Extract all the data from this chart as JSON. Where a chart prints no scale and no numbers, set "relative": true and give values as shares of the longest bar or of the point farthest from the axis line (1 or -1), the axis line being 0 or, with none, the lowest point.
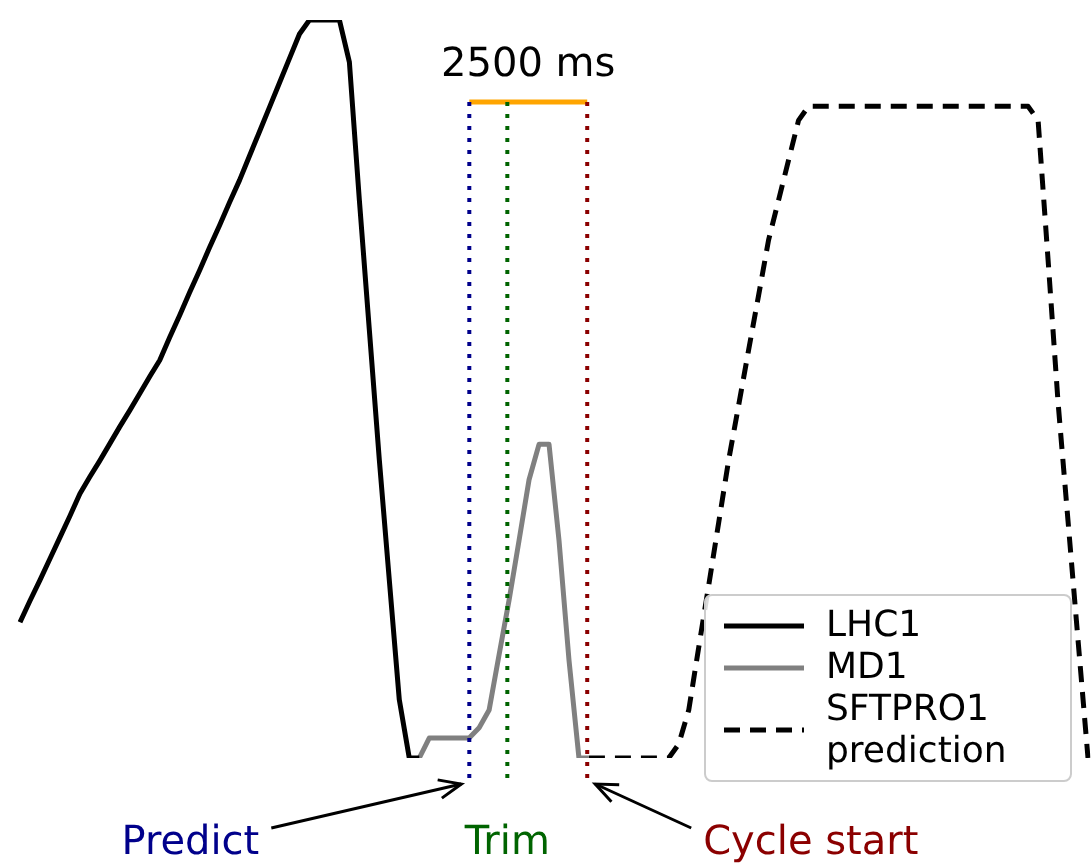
{
  "chart_data": {
    "type": "line",
    "relative": true,
    "legend": "bottom right",
    "marker": "none",
    "categories": [
      null,
      null,
      null,
      null,
      null,
      null,
      null,
      null,
      null,
      null,
      null,
      null,
      null,
      null,
      null,
      null,
      null,
      null,
      null,
      null,
      null,
      null,
      null,
      null,
      null,
      null,
      null,
      null,
      null,
      null,
      null,
      null,
      null,
      null,
      null,
      null,
      null,
      null,
      null,
      null,
      null,
      null,
      null,
      null,
      null,
      null,
      null,
      null,
      null,
      null,
      null,
      null,
      null,
      null,
      null,
      null,
      null,
      null,
      null,
      null,
      null,
      null,
      null,
      null,
      null,
      null,
      null,
      null,
      null,
      null,
      null,
      null,
      null,
      null,
      null,
      null,
      null,
      null,
      null,
      null,
      null,
      null,
      null,
      null,
      null,
      null,
      null,
      null,
      null,
      null,
      null,
      null,
      null,
      null,
      null,
      null,
      null,
      null,
      null,
      null,
      null,
      null,
      null,
      null,
      null,
      null,
      null,
      null
    ],
    "series": [
      {
        "name": "LHC1",
        "color": "#000000",
        "line_style": "solid",
        "values": [
          0.184,
          0.213,
          0.241,
          0.27,
          0.299,
          0.328,
          0.358,
          0.381,
          0.403,
          0.426,
          0.449,
          0.471,
          0.494,
          0.517,
          0.539,
          0.57,
          0.6,
          0.631,
          0.661,
          0.692,
          0.722,
          0.753,
          0.783,
          0.816,
          0.849,
          0.882,
          0.915,
          0.948,
          0.981,
          1,
          1,
          1,
          1,
          0.943,
          0.756,
          0.58,
          0.404,
          0.241,
          0.079,
          0,
          0,
          null,
          null,
          null,
          null,
          null,
          null,
          null,
          null,
          null,
          null,
          null,
          null,
          null,
          null,
          null,
          null,
          null,
          null,
          null,
          null,
          null,
          null,
          null,
          null,
          null,
          null,
          null,
          null,
          null,
          null,
          null,
          null,
          null,
          null,
          null,
          null,
          null,
          null,
          null,
          null,
          null,
          null,
          null,
          null,
          null,
          null,
          null,
          null,
          null,
          null,
          null,
          null,
          null,
          null,
          null,
          null,
          null,
          null,
          null,
          null,
          null,
          null,
          null,
          null,
          null,
          null,
          null
        ]
      },
      {
        "name": "MD1",
        "color": "#808080",
        "line_style": "solid",
        "values": [
          null,
          null,
          null,
          null,
          null,
          null,
          null,
          null,
          null,
          null,
          null,
          null,
          null,
          null,
          null,
          null,
          null,
          null,
          null,
          null,
          null,
          null,
          null,
          null,
          null,
          null,
          null,
          null,
          null,
          null,
          null,
          null,
          null,
          null,
          null,
          null,
          null,
          null,
          null,
          null,
          0,
          0.027,
          0.027,
          0.027,
          0.027,
          0.027,
          0.041,
          0.065,
          0.14,
          0.214,
          0.295,
          0.377,
          0.425,
          0.425,
          0.295,
          0.133,
          0,
          0,
          null,
          null,
          null,
          null,
          null,
          null,
          null,
          null,
          null,
          null,
          null,
          null,
          null,
          null,
          null,
          null,
          null,
          null,
          null,
          null,
          null,
          null,
          null,
          null,
          null,
          null,
          null,
          null,
          null,
          null,
          null,
          null,
          null,
          null,
          null,
          null,
          null,
          null,
          null,
          null,
          null,
          null,
          null,
          null,
          null,
          null,
          null,
          null,
          null,
          null
        ]
      },
      {
        "name": "SFTPRO1 prediction",
        "color": "#000000",
        "line_style": "dashed",
        "values": [
          null,
          null,
          null,
          null,
          null,
          null,
          null,
          null,
          null,
          null,
          null,
          null,
          null,
          null,
          null,
          null,
          null,
          null,
          null,
          null,
          null,
          null,
          null,
          null,
          null,
          null,
          null,
          null,
          null,
          null,
          null,
          null,
          null,
          null,
          null,
          null,
          null,
          null,
          null,
          null,
          null,
          null,
          null,
          null,
          null,
          null,
          null,
          null,
          null,
          null,
          null,
          null,
          null,
          null,
          null,
          null,
          null,
          0,
          0,
          0,
          0,
          0,
          0,
          0,
          0,
          0,
          0.019,
          0.065,
          0.15,
          0.234,
          0.319,
          0.404,
          0.478,
          0.553,
          0.627,
          0.702,
          0.756,
          0.81,
          0.864,
          0.883,
          0.883,
          0.883,
          0.883,
          0.883,
          0.883,
          0.883,
          0.883,
          0.883,
          0.883,
          0.883,
          0.883,
          0.883,
          0.883,
          0.883,
          0.883,
          0.883,
          0.883,
          0.883,
          0.883,
          0.883,
          0.883,
          0.883,
          0.864,
          0.675,
          0.482,
          0.321,
          0.16,
          0
        ]
      }
    ],
    "annotations": [
      "2500 ms",
      "Predict",
      "Trim",
      "Cycle start"
    ]
  }
}
